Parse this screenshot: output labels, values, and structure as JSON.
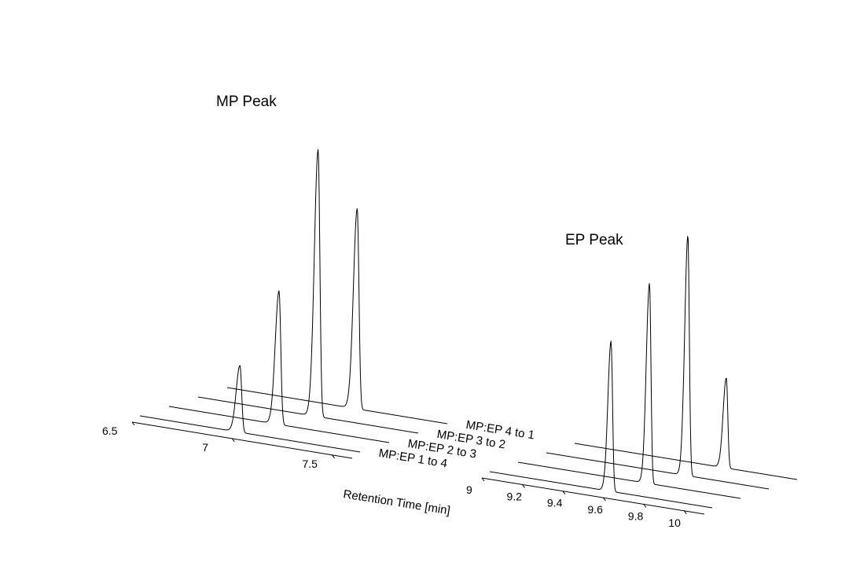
{
  "chart_data": [
    {
      "type": "line",
      "title": "MP Peak",
      "xlabel": "",
      "xlim": [
        6.5,
        7.6
      ],
      "xticks": [
        6.5,
        7,
        7.5
      ],
      "xtick_labels": [
        "6.5",
        "7",
        "7.5"
      ],
      "series": [
        {
          "name": "MP:EP 1 to 4",
          "peak_x": 7.0,
          "peak_height": 0.25
        },
        {
          "name": "MP:EP 2 to 3",
          "peak_x": 7.05,
          "peak_height": 0.5
        },
        {
          "name": "MP:EP 3 to 2",
          "peak_x": 7.1,
          "peak_height": 1.0
        },
        {
          "name": "MP:EP 4 to 1",
          "peak_x": 7.15,
          "peak_height": 0.75
        }
      ]
    },
    {
      "type": "line",
      "title": "EP Peak",
      "xlabel": "Retention Time [min]",
      "xlim": [
        9.0,
        10.1
      ],
      "xticks": [
        9.0,
        9.2,
        9.4,
        9.6,
        9.8,
        10.0
      ],
      "xtick_labels": [
        "9",
        "9.2",
        "9.4",
        "9.6",
        "9.8",
        "10"
      ],
      "series": [
        {
          "name": "MP:EP 1 to 4",
          "peak_x": 9.6,
          "peak_height": 0.75
        },
        {
          "name": "MP:EP 2 to 3",
          "peak_x": 9.65,
          "peak_height": 1.0
        },
        {
          "name": "MP:EP 3 to 2",
          "peak_x": 9.7,
          "peak_height": 1.2
        },
        {
          "name": "MP:EP 4 to 1",
          "peak_x": 9.75,
          "peak_height": 0.45
        }
      ]
    }
  ]
}
